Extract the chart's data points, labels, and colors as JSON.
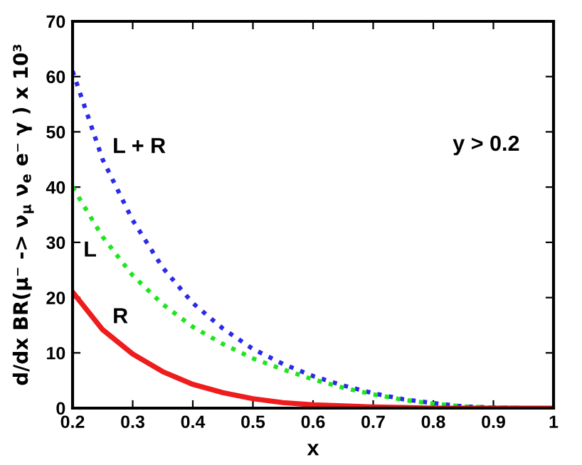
{
  "chart_data": {
    "type": "line",
    "xlabel": "x",
    "ylabel": "d/dx BR(μ⁻ -> ν$_{μ}$ ν$_{e}$ e⁻ γ ) x 10³",
    "x": [
      0.2,
      0.25,
      0.3,
      0.35,
      0.4,
      0.45,
      0.5,
      0.55,
      0.6,
      0.65,
      0.7,
      0.75,
      0.8,
      0.85,
      0.9,
      0.95,
      1
    ],
    "series": [
      {
        "name": "L + R",
        "color": "#2a2ae8",
        "line_style": "dotted",
        "values": [
          61,
          45,
          34,
          25.4,
          19,
          14.4,
          10.7,
          8.0,
          5.8,
          4.1,
          2.7,
          1.6,
          0.9,
          0.3,
          0.1,
          0,
          0
        ]
      },
      {
        "name": "L",
        "color": "#1ee61e",
        "line_style": "dotted",
        "values": [
          40,
          31,
          24,
          18.8,
          14.7,
          11.6,
          9.0,
          7.0,
          5.2,
          3.7,
          2.5,
          1.5,
          0.8,
          0.3,
          0.1,
          0,
          0
        ]
      },
      {
        "name": "R",
        "color": "#ee1c1c",
        "line_style": "solid",
        "values": [
          21,
          14.2,
          9.8,
          6.6,
          4.3,
          2.8,
          1.7,
          1.0,
          0.6,
          0.4,
          0.2,
          0.1,
          0,
          0,
          0,
          0,
          0
        ]
      }
    ],
    "annotations": [
      "y > 0.2"
    ],
    "xlim": [
      0.2,
      1
    ],
    "ylim": [
      0,
      70
    ],
    "xticks": [
      0.2,
      0.3,
      0.4,
      0.5,
      0.6,
      0.7,
      0.8,
      0.9,
      1
    ],
    "yticks": [
      0,
      10,
      20,
      30,
      40,
      50,
      60,
      70
    ],
    "grid": false,
    "legend": false,
    "marker": "none"
  }
}
